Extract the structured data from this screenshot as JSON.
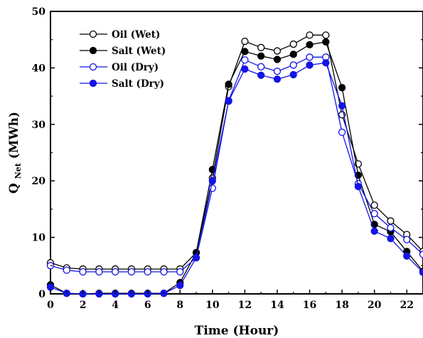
{
  "chart_data": {
    "type": "line",
    "title": "",
    "xlabel": "Time (Hour)",
    "ylabel": {
      "main": "Q",
      "subscript": "Net",
      "unit": " (MWh)"
    },
    "xlim": [
      0,
      23
    ],
    "ylim": [
      0,
      50
    ],
    "xticks": [
      0,
      2,
      4,
      6,
      8,
      10,
      12,
      14,
      16,
      18,
      20,
      22
    ],
    "yticks": [
      0,
      10,
      20,
      30,
      40,
      50
    ],
    "grid": false,
    "legend_position": "top-left",
    "x": [
      0,
      1,
      2,
      3,
      4,
      5,
      6,
      7,
      8,
      9,
      10,
      11,
      12,
      13,
      14,
      15,
      16,
      17,
      18,
      19,
      20,
      21,
      22,
      23
    ],
    "series": [
      {
        "name": "Oil (Wet)",
        "color": "#000000",
        "marker": "open-circle",
        "values": [
          5.5,
          4.6,
          4.4,
          4.4,
          4.4,
          4.4,
          4.4,
          4.4,
          4.4,
          7.3,
          20.5,
          36.7,
          44.7,
          43.6,
          43.0,
          44.2,
          45.8,
          45.8,
          31.7,
          23.0,
          15.7,
          12.9,
          10.5,
          7.5
        ]
      },
      {
        "name": "Salt (Wet)",
        "color": "#000000",
        "marker": "filled-circle",
        "values": [
          1.6,
          0.1,
          0.0,
          0.1,
          0.1,
          0.1,
          0.1,
          0.1,
          2.0,
          7.3,
          22.0,
          37.1,
          42.9,
          42.1,
          41.5,
          42.4,
          44.1,
          44.6,
          36.5,
          21.0,
          12.3,
          11.0,
          7.5,
          4.0
        ]
      },
      {
        "name": "Oil (Dry)",
        "color": "#1414e6",
        "marker": "open-circle",
        "values": [
          5.0,
          4.2,
          3.9,
          3.9,
          3.9,
          3.9,
          3.9,
          3.9,
          3.9,
          6.4,
          18.7,
          34.2,
          41.4,
          40.2,
          39.4,
          40.5,
          41.9,
          41.9,
          28.6,
          19.5,
          14.2,
          11.7,
          9.6,
          7.0
        ]
      },
      {
        "name": "Salt (Dry)",
        "color": "#1414e6",
        "marker": "filled-circle",
        "values": [
          1.2,
          0.1,
          0.0,
          0.0,
          0.0,
          0.0,
          0.0,
          0.1,
          1.5,
          6.4,
          20.0,
          34.1,
          39.8,
          38.7,
          38.0,
          38.8,
          40.5,
          40.9,
          33.3,
          19.0,
          11.1,
          9.8,
          6.7,
          3.8
        ]
      }
    ]
  }
}
